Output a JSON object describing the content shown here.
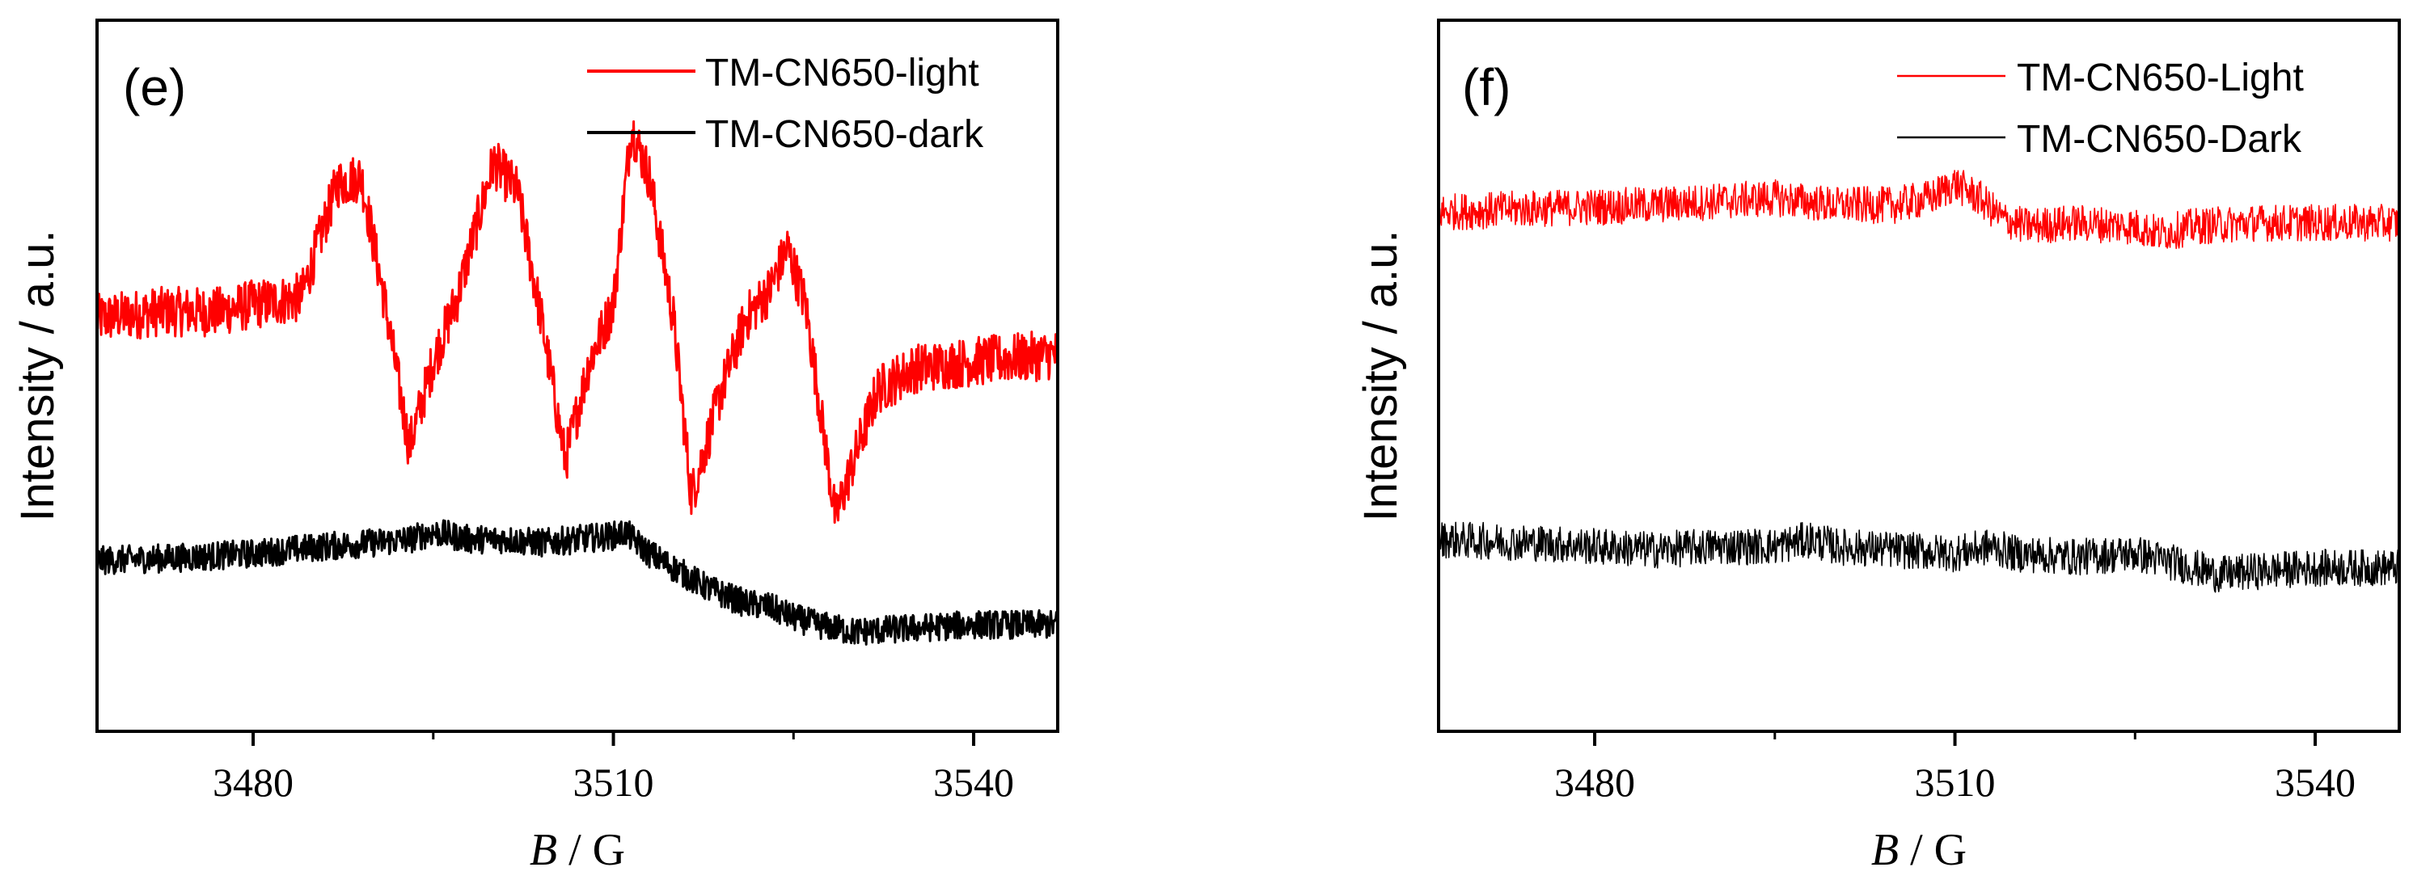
{
  "chart_data": [
    {
      "type": "line",
      "panel_label": "(e)",
      "xlabel_italic": "B",
      "xlabel_rest": " / G",
      "ylabel": "Intensity / a.u.",
      "xlim": [
        3467,
        3547
      ],
      "ylim": [
        0,
        100
      ],
      "x_ticks": [
        3480,
        3510,
        3540
      ],
      "x_tick_labels": [
        "3480",
        "3510",
        "3540"
      ],
      "legend_position": "top-right",
      "series": [
        {
          "name": "TM-CN650-light",
          "color": "#ff0000",
          "noise": 3.5,
          "points": [
            [
              3467,
              58
            ],
            [
              3472,
              59
            ],
            [
              3477,
              59
            ],
            [
              3480,
              60
            ],
            [
              3484,
              61
            ],
            [
              3487,
              77
            ],
            [
              3489,
              78
            ],
            [
              3491,
              60
            ],
            [
              3493,
              40
            ],
            [
              3495,
              52
            ],
            [
              3497,
              61
            ],
            [
              3500,
              80
            ],
            [
              3502,
              76
            ],
            [
              3504,
              58
            ],
            [
              3506,
              38
            ],
            [
              3508,
              52
            ],
            [
              3510,
              60
            ],
            [
              3511.5,
              85
            ],
            [
              3513,
              78
            ],
            [
              3515,
              58
            ],
            [
              3516.5,
              33
            ],
            [
              3519,
              48
            ],
            [
              3521,
              58
            ],
            [
              3523,
              62
            ],
            [
              3524.5,
              68
            ],
            [
              3526,
              60
            ],
            [
              3527.5,
              42
            ],
            [
              3528.5,
              30
            ],
            [
              3530,
              38
            ],
            [
              3532,
              48
            ],
            [
              3535,
              51
            ],
            [
              3540,
              52
            ],
            [
              3547,
              53
            ]
          ]
        },
        {
          "name": "TM-CN650-dark",
          "color": "#000000",
          "noise": 2.0,
          "points": [
            [
              3467,
              24
            ],
            [
              3475,
              24.5
            ],
            [
              3480,
              25
            ],
            [
              3486,
              26
            ],
            [
              3490,
              26.5
            ],
            [
              3493,
              27
            ],
            [
              3495,
              28
            ],
            [
              3498,
              27
            ],
            [
              3501,
              27
            ],
            [
              3504,
              26.5
            ],
            [
              3507,
              27
            ],
            [
              3510,
              27.5
            ],
            [
              3511,
              28
            ],
            [
              3513,
              25
            ],
            [
              3515,
              23
            ],
            [
              3518,
              20
            ],
            [
              3521,
              18
            ],
            [
              3523,
              17.5
            ],
            [
              3525,
              16
            ],
            [
              3527,
              15
            ],
            [
              3530,
              14
            ],
            [
              3535,
              14.5
            ],
            [
              3540,
              15
            ],
            [
              3547,
              15
            ]
          ]
        }
      ]
    },
    {
      "type": "line",
      "panel_label": "(f)",
      "xlabel_italic": "B",
      "xlabel_rest": " / G",
      "ylabel": "Intensity / a.u.",
      "xlim": [
        3467,
        3547
      ],
      "ylim": [
        0,
        100
      ],
      "x_ticks": [
        3480,
        3510,
        3540
      ],
      "x_tick_labels": [
        "3480",
        "3510",
        "3540"
      ],
      "legend_position": "top-right",
      "series": [
        {
          "name": "TM-CN650-Light",
          "color": "#ff0000",
          "noise": 2.6,
          "points": [
            [
              3467,
              73
            ],
            [
              3475,
              73.5
            ],
            [
              3485,
              74
            ],
            [
              3490,
              74.5
            ],
            [
              3495,
              75
            ],
            [
              3500,
              74
            ],
            [
              3505,
              74
            ],
            [
              3508,
              75
            ],
            [
              3510,
              77
            ],
            [
              3512,
              75
            ],
            [
              3514,
              72
            ],
            [
              3516,
              71
            ],
            [
              3520,
              71.5
            ],
            [
              3525,
              71
            ],
            [
              3527,
              70
            ],
            [
              3530,
              71
            ],
            [
              3535,
              71.5
            ],
            [
              3540,
              71.5
            ],
            [
              3547,
              71.5
            ]
          ]
        },
        {
          "name": "TM-CN650-Dark",
          "color": "#000000",
          "noise": 2.6,
          "points": [
            [
              3467,
              27
            ],
            [
              3475,
              26.5
            ],
            [
              3480,
              26
            ],
            [
              3485,
              25.5
            ],
            [
              3490,
              26
            ],
            [
              3495,
              26
            ],
            [
              3498,
              27
            ],
            [
              3500,
              26
            ],
            [
              3505,
              25.5
            ],
            [
              3510,
              25
            ],
            [
              3513,
              26
            ],
            [
              3515,
              25
            ],
            [
              3520,
              24.5
            ],
            [
              3525,
              25
            ],
            [
              3530,
              23
            ],
            [
              3532,
              22
            ],
            [
              3535,
              22.5
            ],
            [
              3540,
              23
            ],
            [
              3547,
              23
            ]
          ]
        }
      ]
    }
  ]
}
